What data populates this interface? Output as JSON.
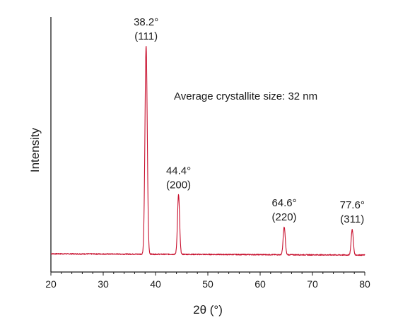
{
  "chart_data": {
    "type": "line",
    "title": "",
    "xlabel": "2θ (°)",
    "ylabel": "Intensity",
    "xlim": [
      20,
      80
    ],
    "ylim": [
      0,
      100
    ],
    "x_ticks": [
      20,
      30,
      40,
      50,
      60,
      70,
      80
    ],
    "x_tick_labels": [
      "20",
      "30",
      "40",
      "50",
      "60",
      "70",
      "80"
    ],
    "y_ticks_visible": false,
    "grid": false,
    "baseline": 2,
    "series": [
      {
        "color": "#c8102e",
        "peaks": [
          {
            "x": 38.2,
            "y": 100,
            "label_angle": "38.2°",
            "label_hkl": "(111)"
          },
          {
            "x": 44.4,
            "y": 30,
            "label_angle": "44.4°",
            "label_hkl": "(200)"
          },
          {
            "x": 64.6,
            "y": 15,
            "label_angle": "64.6°",
            "label_hkl": "(220)"
          },
          {
            "x": 77.6,
            "y": 14,
            "label_angle": "77.6°",
            "label_hkl": "(311)"
          }
        ]
      }
    ],
    "annotation": "Average crystallite size: 32 nm"
  }
}
